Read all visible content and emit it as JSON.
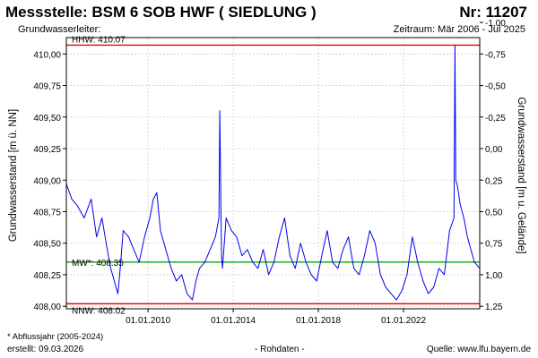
{
  "header": {
    "title": "Messstelle: BSM  6 SOB HWF ( SIEDLUNG )",
    "number": "Nr: 11207",
    "aquifer_label": "Grundwasserleiter:",
    "period": "Zeitraum: Mär 2006 - Jul 2025"
  },
  "footer": {
    "footnote": "* Abflussjahr (2005-2024)",
    "created": "erstellt:  09.03.2026",
    "raw": "- Rohdaten -",
    "source": "Quelle:  www.lfu.bayern.de"
  },
  "colors": {
    "series": "#0000ee",
    "hhw": "#ee0000",
    "nnw": "#ee0000",
    "mw": "#00aa00",
    "grid": "#cccccc"
  },
  "chart_data": {
    "type": "line",
    "ylabel": "Grundwasserstand [m ü. NN]",
    "y2label": "Grundwasserstand [m u. Gelände]",
    "ylim": [
      407.98,
      410.13
    ],
    "yticks": [
      "410,00",
      "409,75",
      "409,50",
      "409,25",
      "409,00",
      "408,75",
      "408,50",
      "408,25",
      "408,00"
    ],
    "ytick_values": [
      410.0,
      409.75,
      409.5,
      409.25,
      409.0,
      408.75,
      408.5,
      408.25,
      408.0
    ],
    "y2ticks": [
      "-1,00",
      "-0,75",
      "-0,50",
      "-0,25",
      "0,00",
      "0,25",
      "0,50",
      "0,75",
      "1,00",
      "1,25"
    ],
    "y2tick_values": [
      -1.0,
      -0.75,
      -0.5,
      -0.25,
      0.0,
      0.25,
      0.5,
      0.75,
      1.0,
      1.25
    ],
    "ground_level": 409.25,
    "xlim": [
      "2006-03-01",
      "2025-07-31"
    ],
    "xticks": [
      "01.01.2010",
      "01.01.2014",
      "01.01.2018",
      "01.01.2022"
    ],
    "xtick_dates": [
      "2010-01-01",
      "2014-01-01",
      "2018-01-01",
      "2022-01-01"
    ],
    "grid": true,
    "reference_lines": [
      {
        "label": "HHW: 410.07",
        "value": 410.07
      },
      {
        "label": "MW*: 408.35",
        "value": 408.35
      },
      {
        "label": "NNW: 408.02",
        "value": 408.02
      }
    ],
    "series": [
      {
        "x": [
          "2006-03-01",
          "2006-06-01",
          "2006-09-01",
          "2007-01-01",
          "2007-05-01",
          "2007-08-01",
          "2007-11-01",
          "2008-02-01",
          "2008-04-01",
          "2008-06-01",
          "2008-07-01",
          "2008-08-01",
          "2008-09-01",
          "2008-11-01",
          "2009-02-01",
          "2009-05-01",
          "2009-08-01",
          "2009-11-01",
          "2010-02-01",
          "2010-04-01",
          "2010-06-01",
          "2010-08-01",
          "2010-11-01",
          "2011-02-01",
          "2011-05-01",
          "2011-08-01",
          "2011-11-01",
          "2012-02-01",
          "2012-04-01",
          "2012-06-01",
          "2012-09-01",
          "2012-12-01",
          "2013-03-01",
          "2013-05-01",
          "2013-05-15",
          "2013-06-01",
          "2013-06-15",
          "2013-07-01",
          "2013-09-01",
          "2013-12-01",
          "2014-03-01",
          "2014-06-01",
          "2014-09-01",
          "2014-12-01",
          "2015-03-01",
          "2015-06-01",
          "2015-09-01",
          "2015-12-01",
          "2016-03-01",
          "2016-06-01",
          "2016-09-01",
          "2016-12-01",
          "2017-03-01",
          "2017-06-01",
          "2017-09-01",
          "2017-12-01",
          "2018-03-01",
          "2018-06-01",
          "2018-09-01",
          "2018-12-01",
          "2019-03-01",
          "2019-06-01",
          "2019-09-01",
          "2019-12-01",
          "2020-03-01",
          "2020-06-01",
          "2020-09-01",
          "2020-12-01",
          "2021-03-01",
          "2021-06-01",
          "2021-09-01",
          "2021-12-01",
          "2022-03-01",
          "2022-06-01",
          "2022-09-01",
          "2022-12-01",
          "2023-03-01",
          "2023-06-01",
          "2023-09-01",
          "2023-12-01",
          "2024-03-01",
          "2024-05-15",
          "2024-06-01",
          "2024-06-15",
          "2024-07-15",
          "2024-09-01",
          "2024-11-01",
          "2025-01-01",
          "2025-03-01",
          "2025-05-01",
          "2025-07-31"
        ],
        "y": [
          408.97,
          408.85,
          408.8,
          408.7,
          408.85,
          408.55,
          408.7,
          408.45,
          408.3,
          408.2,
          408.15,
          408.1,
          408.25,
          408.6,
          408.55,
          408.45,
          408.35,
          408.55,
          408.7,
          408.85,
          408.9,
          408.6,
          408.45,
          408.3,
          408.2,
          408.25,
          408.1,
          408.05,
          408.2,
          408.3,
          408.35,
          408.45,
          408.55,
          408.7,
          409.55,
          408.9,
          408.4,
          408.3,
          408.7,
          408.6,
          408.55,
          408.4,
          408.45,
          408.35,
          408.3,
          408.45,
          408.25,
          408.35,
          408.55,
          408.7,
          408.4,
          408.3,
          408.5,
          408.35,
          408.25,
          408.2,
          408.4,
          408.6,
          408.35,
          408.3,
          408.45,
          408.55,
          408.3,
          408.25,
          408.4,
          408.6,
          408.5,
          408.25,
          408.15,
          408.1,
          408.05,
          408.12,
          408.25,
          408.55,
          408.35,
          408.2,
          408.1,
          408.15,
          408.3,
          408.25,
          408.6,
          408.7,
          410.07,
          409.0,
          408.95,
          408.8,
          408.7,
          408.55,
          408.45,
          408.35,
          408.3
        ]
      }
    ]
  }
}
